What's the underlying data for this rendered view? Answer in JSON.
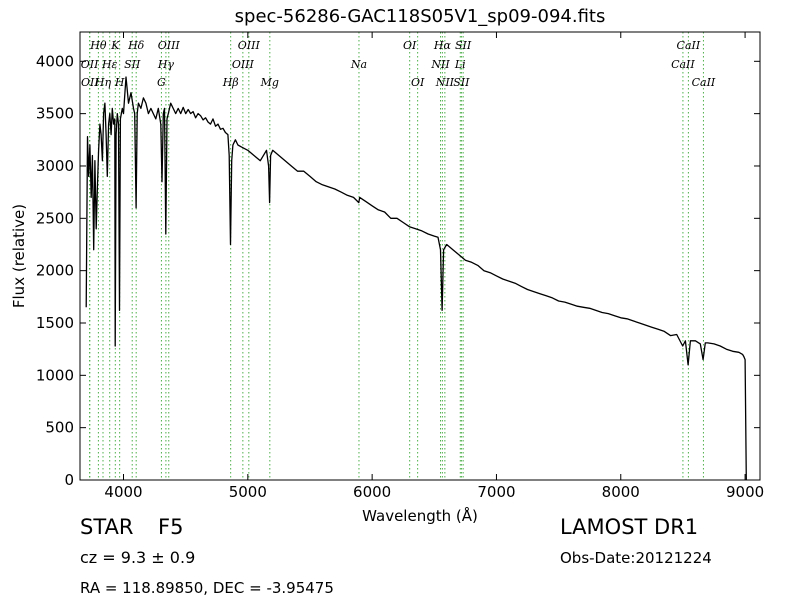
{
  "chart_data": {
    "type": "line",
    "title": "spec-56286-GAC118S05V1_sp09-094.fits",
    "xlabel": "Wavelength (Å)",
    "ylabel": "Flux (relative)",
    "xlim": [
      3650,
      9120
    ],
    "ylim": [
      0,
      4280
    ],
    "x_ticks": [
      4000,
      5000,
      6000,
      7000,
      8000,
      9000
    ],
    "y_ticks": [
      0,
      500,
      1000,
      1500,
      2000,
      2500,
      3000,
      3500,
      4000
    ],
    "grid": false,
    "line_color": "#000000",
    "marker_color": "#4daf4a",
    "series": [
      {
        "x": [
          3700,
          3710,
          3720,
          3730,
          3740,
          3750,
          3760,
          3770,
          3780,
          3790,
          3800,
          3810,
          3820,
          3830,
          3840,
          3850,
          3860,
          3870,
          3880,
          3890,
          3900,
          3910,
          3920,
          3930,
          3933,
          3940,
          3950,
          3960,
          3968,
          3975,
          3990,
          4000,
          4020,
          4040,
          4060,
          4080,
          4090,
          4101,
          4110,
          4120,
          4140,
          4160,
          4180,
          4200,
          4220,
          4240,
          4260,
          4280,
          4300,
          4310,
          4320,
          4330,
          4340,
          4350,
          4360,
          4380,
          4400,
          4420,
          4440,
          4460,
          4480,
          4500,
          4520,
          4540,
          4560,
          4580,
          4600,
          4620,
          4640,
          4660,
          4680,
          4700,
          4720,
          4740,
          4760,
          4780,
          4800,
          4820,
          4840,
          4850,
          4861,
          4870,
          4880,
          4900,
          4920,
          4950,
          5000,
          5050,
          5100,
          5150,
          5167,
          5175,
          5183,
          5200,
          5250,
          5300,
          5350,
          5400,
          5450,
          5500,
          5550,
          5600,
          5650,
          5700,
          5750,
          5800,
          5850,
          5893,
          5900,
          5950,
          6000,
          6050,
          6100,
          6150,
          6200,
          6250,
          6300,
          6350,
          6400,
          6450,
          6500,
          6530,
          6550,
          6563,
          6575,
          6600,
          6650,
          6700,
          6750,
          6800,
          6850,
          6900,
          6950,
          7000,
          7050,
          7100,
          7150,
          7200,
          7250,
          7300,
          7350,
          7400,
          7450,
          7500,
          7550,
          7600,
          7650,
          7700,
          7750,
          7800,
          7850,
          7900,
          7950,
          8000,
          8050,
          8100,
          8150,
          8200,
          8250,
          8300,
          8350,
          8400,
          8450,
          8498,
          8520,
          8542,
          8560,
          8600,
          8640,
          8662,
          8680,
          8700,
          8750,
          8800,
          8850,
          8900,
          8950,
          8980,
          8990,
          9000,
          9010
        ],
        "y": [
          1650,
          3280,
          2900,
          3200,
          2700,
          3100,
          2200,
          3050,
          2400,
          2800,
          3150,
          3400,
          3300,
          3050,
          3500,
          3600,
          3300,
          2900,
          3400,
          3500,
          3300,
          3550,
          3400,
          3450,
          1280,
          3300,
          3500,
          3400,
          1620,
          3450,
          3550,
          3500,
          3850,
          3600,
          3700,
          3550,
          3500,
          2600,
          3500,
          3600,
          3550,
          3650,
          3600,
          3500,
          3550,
          3500,
          3450,
          3550,
          3400,
          2850,
          3500,
          3550,
          2350,
          3450,
          3500,
          3600,
          3550,
          3500,
          3550,
          3500,
          3560,
          3500,
          3540,
          3500,
          3520,
          3460,
          3500,
          3480,
          3440,
          3460,
          3420,
          3400,
          3450,
          3380,
          3400,
          3350,
          3360,
          3320,
          3300,
          3100,
          2250,
          3050,
          3200,
          3250,
          3200,
          3180,
          3150,
          3100,
          3050,
          3150,
          3000,
          2650,
          3100,
          3150,
          3100,
          3050,
          3000,
          2950,
          2950,
          2900,
          2850,
          2820,
          2800,
          2780,
          2750,
          2720,
          2700,
          2650,
          2700,
          2660,
          2620,
          2580,
          2560,
          2500,
          2500,
          2460,
          2420,
          2400,
          2380,
          2350,
          2330,
          2320,
          2200,
          1620,
          2200,
          2250,
          2200,
          2150,
          2100,
          2080,
          2050,
          2000,
          1980,
          1950,
          1920,
          1900,
          1880,
          1850,
          1820,
          1800,
          1780,
          1760,
          1740,
          1710,
          1700,
          1680,
          1660,
          1650,
          1640,
          1620,
          1600,
          1590,
          1570,
          1550,
          1540,
          1520,
          1500,
          1480,
          1460,
          1440,
          1420,
          1380,
          1390,
          1280,
          1330,
          1100,
          1330,
          1330,
          1300,
          1150,
          1310,
          1310,
          1300,
          1280,
          1250,
          1230,
          1220,
          1200,
          1180,
          1150,
          0
        ]
      }
    ],
    "lines": [
      {
        "label": "OII",
        "x": 3727,
        "row": 1
      },
      {
        "label": "OII",
        "x": 3729,
        "row": 2
      },
      {
        "label": "Hθ",
        "x": 3798,
        "row": 0
      },
      {
        "label": "Hη",
        "x": 3835,
        "row": 2
      },
      {
        "label": "Hε",
        "x": 3889,
        "row": 1
      },
      {
        "label": "K",
        "x": 3934,
        "row": 0
      },
      {
        "label": "H",
        "x": 3969,
        "row": 2
      },
      {
        "label": "SII",
        "x": 4070,
        "row": 1
      },
      {
        "label": "Hδ",
        "x": 4102,
        "row": 0
      },
      {
        "label": "G",
        "x": 4305,
        "row": 2
      },
      {
        "label": "Hγ",
        "x": 4341,
        "row": 1
      },
      {
        "label": "OIII",
        "x": 4364,
        "row": 0
      },
      {
        "label": "Hβ",
        "x": 4862,
        "row": 2
      },
      {
        "label": "OIII",
        "x": 4960,
        "row": 1
      },
      {
        "label": "OIII",
        "x": 5008,
        "row": 0
      },
      {
        "label": "Mg",
        "x": 5177,
        "row": 2
      },
      {
        "label": "Na",
        "x": 5894,
        "row": 1
      },
      {
        "label": "OI",
        "x": 6302,
        "row": 0
      },
      {
        "label": "OI",
        "x": 6366,
        "row": 2
      },
      {
        "label": "NII",
        "x": 6550,
        "row": 1
      },
      {
        "label": "Hα",
        "x": 6565,
        "row": 0
      },
      {
        "label": "NII",
        "x": 6585,
        "row": 2
      },
      {
        "label": "Li",
        "x": 6709,
        "row": 1
      },
      {
        "label": "SII",
        "x": 6718,
        "row": 2
      },
      {
        "label": "SII",
        "x": 6732,
        "row": 0
      },
      {
        "label": "CaII",
        "x": 8500,
        "row": 1
      },
      {
        "label": "CaII",
        "x": 8544,
        "row": 0
      },
      {
        "label": "CaII",
        "x": 8665,
        "row": 2
      }
    ]
  },
  "info": {
    "object_class": "STAR",
    "subclass": "F5",
    "survey": "LAMOST DR1",
    "redshift": "cz = 9.3 ± 0.9",
    "obs_date": "Obs-Date:20121224",
    "coordinates": "RA = 118.89850, DEC = -3.95475"
  }
}
